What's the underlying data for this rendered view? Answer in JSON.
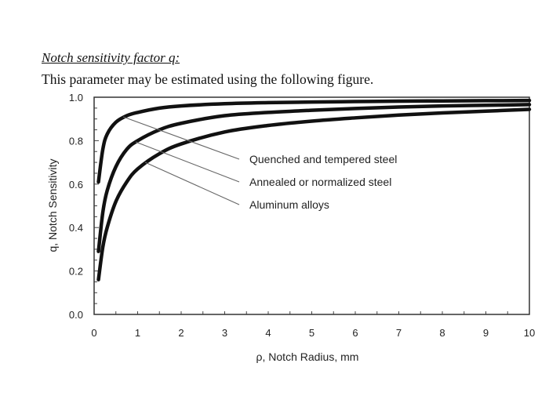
{
  "header": {
    "title": "Notch sensitivity factor q:",
    "description": "This parameter may be estimated using the following figure."
  },
  "chart_data": {
    "type": "line",
    "title": "",
    "xlabel": "ρ, Notch Radius, mm",
    "ylabel": "q, Notch Sensitivity",
    "xlim": [
      0,
      10
    ],
    "ylim": [
      0.0,
      1.0
    ],
    "x_ticks": [
      "0",
      "1",
      "2",
      "3",
      "4",
      "5",
      "6",
      "7",
      "8",
      "9",
      "10"
    ],
    "y_ticks": [
      "0.0",
      "0.2",
      "0.4",
      "0.6",
      "0.8",
      "1.0"
    ],
    "grid": false,
    "legend_position": "annotated leader lines, center-right",
    "x": [
      0.1,
      0.2,
      0.3,
      0.5,
      0.75,
      1,
      1.5,
      2,
      3,
      4,
      5,
      6,
      7,
      8,
      9,
      10
    ],
    "series": [
      {
        "name": "Quenched and tempered steel",
        "values": [
          0.61,
          0.76,
          0.83,
          0.885,
          0.915,
          0.93,
          0.95,
          0.96,
          0.97,
          0.975,
          0.978,
          0.98,
          0.982,
          0.983,
          0.984,
          0.985
        ]
      },
      {
        "name": "Annealed or normalized steel",
        "values": [
          0.29,
          0.47,
          0.57,
          0.68,
          0.76,
          0.8,
          0.85,
          0.88,
          0.915,
          0.93,
          0.94,
          0.948,
          0.955,
          0.96,
          0.963,
          0.966
        ]
      },
      {
        "name": "Aluminum alloys",
        "values": [
          0.16,
          0.31,
          0.4,
          0.52,
          0.61,
          0.67,
          0.74,
          0.785,
          0.84,
          0.87,
          0.89,
          0.905,
          0.918,
          0.928,
          0.936,
          0.944
        ]
      }
    ]
  }
}
